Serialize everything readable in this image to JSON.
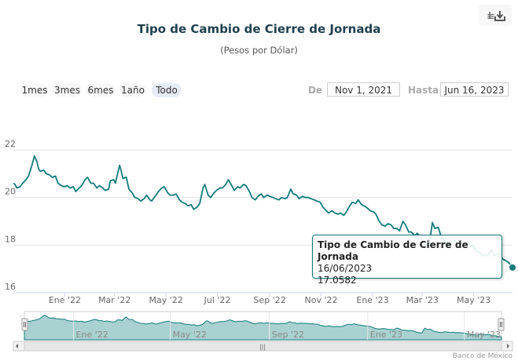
{
  "chart_data": {
    "type": "line",
    "title": "Tipo de Cambio de Cierre de Jornada",
    "subtitle": "(Pesos por Dólar)",
    "series": [
      {
        "name": "Tipo de Cambio de Cierre de Jornada",
        "color": "#137b7b",
        "points": [
          [
            "2021-11-01",
            20.6
          ],
          [
            "2021-11-03",
            20.55
          ],
          [
            "2021-11-05",
            20.4
          ],
          [
            "2021-11-09",
            20.45
          ],
          [
            "2021-11-12",
            20.6
          ],
          [
            "2021-11-16",
            20.75
          ],
          [
            "2021-11-19",
            20.9
          ],
          [
            "2021-11-23",
            21.35
          ],
          [
            "2021-11-26",
            21.75
          ],
          [
            "2021-11-29",
            21.5
          ],
          [
            "2021-12-01",
            21.2
          ],
          [
            "2021-12-03",
            21.1
          ],
          [
            "2021-12-07",
            21.15
          ],
          [
            "2021-12-10",
            21.0
          ],
          [
            "2021-12-14",
            20.95
          ],
          [
            "2021-12-17",
            20.85
          ],
          [
            "2021-12-21",
            20.9
          ],
          [
            "2021-12-24",
            20.6
          ],
          [
            "2021-12-28",
            20.5
          ],
          [
            "2021-12-31",
            20.45
          ],
          [
            "2022-01-04",
            20.5
          ],
          [
            "2022-01-07",
            20.4
          ],
          [
            "2022-01-11",
            20.45
          ],
          [
            "2022-01-14",
            20.25
          ],
          [
            "2022-01-18",
            20.4
          ],
          [
            "2022-01-21",
            20.5
          ],
          [
            "2022-01-25",
            20.75
          ],
          [
            "2022-01-28",
            20.85
          ],
          [
            "2022-02-01",
            20.6
          ],
          [
            "2022-02-04",
            20.6
          ],
          [
            "2022-02-08",
            20.4
          ],
          [
            "2022-02-11",
            20.5
          ],
          [
            "2022-02-15",
            20.4
          ],
          [
            "2022-02-18",
            20.3
          ],
          [
            "2022-02-22",
            20.35
          ],
          [
            "2022-02-24",
            20.7
          ],
          [
            "2022-02-28",
            20.75
          ],
          [
            "2022-03-02",
            20.6
          ],
          [
            "2022-03-04",
            20.9
          ],
          [
            "2022-03-07",
            21.35
          ],
          [
            "2022-03-09",
            21.1
          ],
          [
            "2022-03-11",
            20.8
          ],
          [
            "2022-03-15",
            20.85
          ],
          [
            "2022-03-18",
            20.35
          ],
          [
            "2022-03-22",
            20.2
          ],
          [
            "2022-03-25",
            20.0
          ],
          [
            "2022-03-29",
            19.95
          ],
          [
            "2022-04-01",
            19.85
          ],
          [
            "2022-04-05",
            19.95
          ],
          [
            "2022-04-08",
            20.1
          ],
          [
            "2022-04-12",
            19.9
          ],
          [
            "2022-04-14",
            19.85
          ],
          [
            "2022-04-19",
            20.1
          ],
          [
            "2022-04-22",
            20.25
          ],
          [
            "2022-04-26",
            20.4
          ],
          [
            "2022-04-29",
            20.45
          ],
          [
            "2022-05-03",
            20.2
          ],
          [
            "2022-05-06",
            20.1
          ],
          [
            "2022-05-10",
            20.1
          ],
          [
            "2022-05-13",
            20.15
          ],
          [
            "2022-05-17",
            19.9
          ],
          [
            "2022-05-20",
            19.8
          ],
          [
            "2022-05-24",
            19.75
          ],
          [
            "2022-05-27",
            19.65
          ],
          [
            "2022-05-31",
            19.7
          ],
          [
            "2022-06-03",
            19.5
          ],
          [
            "2022-06-07",
            19.6
          ],
          [
            "2022-06-10",
            19.75
          ],
          [
            "2022-06-14",
            20.4
          ],
          [
            "2022-06-16",
            20.55
          ],
          [
            "2022-06-20",
            20.1
          ],
          [
            "2022-06-23",
            20.0
          ],
          [
            "2022-06-27",
            20.2
          ],
          [
            "2022-06-30",
            20.3
          ],
          [
            "2022-07-04",
            20.4
          ],
          [
            "2022-07-07",
            20.4
          ],
          [
            "2022-07-11",
            20.55
          ],
          [
            "2022-07-14",
            20.75
          ],
          [
            "2022-07-18",
            20.5
          ],
          [
            "2022-07-21",
            20.3
          ],
          [
            "2022-07-25",
            20.45
          ],
          [
            "2022-07-28",
            20.4
          ],
          [
            "2022-08-01",
            20.55
          ],
          [
            "2022-08-04",
            20.5
          ],
          [
            "2022-08-08",
            20.25
          ],
          [
            "2022-08-11",
            20.0
          ],
          [
            "2022-08-15",
            19.9
          ],
          [
            "2022-08-18",
            20.05
          ],
          [
            "2022-08-22",
            20.15
          ],
          [
            "2022-08-25",
            20.0
          ],
          [
            "2022-08-29",
            20.1
          ],
          [
            "2022-09-01",
            20.05
          ],
          [
            "2022-09-05",
            20.0
          ],
          [
            "2022-09-08",
            19.95
          ],
          [
            "2022-09-12",
            19.9
          ],
          [
            "2022-09-15",
            20.0
          ],
          [
            "2022-09-19",
            19.95
          ],
          [
            "2022-09-22",
            20.0
          ],
          [
            "2022-09-26",
            20.35
          ],
          [
            "2022-09-29",
            20.15
          ],
          [
            "2022-10-03",
            20.1
          ],
          [
            "2022-10-06",
            19.95
          ],
          [
            "2022-10-10",
            20.05
          ],
          [
            "2022-10-13",
            20.0
          ],
          [
            "2022-10-17",
            20.0
          ],
          [
            "2022-10-20",
            19.95
          ],
          [
            "2022-10-24",
            19.9
          ],
          [
            "2022-10-27",
            19.85
          ],
          [
            "2022-10-31",
            19.8
          ],
          [
            "2022-11-03",
            19.6
          ],
          [
            "2022-11-07",
            19.45
          ],
          [
            "2022-11-10",
            19.35
          ],
          [
            "2022-11-14",
            19.45
          ],
          [
            "2022-11-17",
            19.35
          ],
          [
            "2022-11-21",
            19.3
          ],
          [
            "2022-11-24",
            19.35
          ],
          [
            "2022-11-28",
            19.25
          ],
          [
            "2022-12-01",
            19.4
          ],
          [
            "2022-12-05",
            19.65
          ],
          [
            "2022-12-08",
            19.8
          ],
          [
            "2022-12-12",
            19.75
          ],
          [
            "2022-12-15",
            19.9
          ],
          [
            "2022-12-19",
            19.7
          ],
          [
            "2022-12-22",
            19.65
          ],
          [
            "2022-12-26",
            19.55
          ],
          [
            "2022-12-29",
            19.45
          ],
          [
            "2023-01-02",
            19.4
          ],
          [
            "2023-01-05",
            19.3
          ],
          [
            "2023-01-09",
            19.0
          ],
          [
            "2023-01-12",
            18.85
          ],
          [
            "2023-01-16",
            18.8
          ],
          [
            "2023-01-19",
            18.9
          ],
          [
            "2023-01-23",
            18.85
          ],
          [
            "2023-01-26",
            18.7
          ],
          [
            "2023-01-30",
            18.7
          ],
          [
            "2023-02-02",
            18.6
          ],
          [
            "2023-02-06",
            19.0
          ],
          [
            "2023-02-09",
            18.85
          ],
          [
            "2023-02-13",
            18.55
          ],
          [
            "2023-02-16",
            18.55
          ],
          [
            "2023-02-20",
            18.4
          ],
          [
            "2023-02-23",
            18.5
          ],
          [
            "2023-02-27",
            18.35
          ],
          [
            "2023-03-02",
            18.15
          ],
          [
            "2023-03-06",
            18.0
          ],
          [
            "2023-03-09",
            17.95
          ],
          [
            "2023-03-13",
            18.95
          ],
          [
            "2023-03-16",
            18.7
          ],
          [
            "2023-03-20",
            18.75
          ],
          [
            "2023-03-23",
            18.4
          ],
          [
            "2023-03-27",
            18.2
          ],
          [
            "2023-03-30",
            18.1
          ],
          [
            "2023-04-03",
            18.0
          ],
          [
            "2023-04-06",
            18.2
          ],
          [
            "2023-04-10",
            18.15
          ],
          [
            "2023-04-13",
            18.05
          ],
          [
            "2023-04-17",
            18.1
          ],
          [
            "2023-04-20",
            18.0
          ],
          [
            "2023-04-24",
            18.05
          ],
          [
            "2023-04-27",
            18.0
          ],
          [
            "2023-05-01",
            17.95
          ],
          [
            "2023-05-04",
            17.75
          ],
          [
            "2023-05-08",
            17.7
          ],
          [
            "2023-05-11",
            17.55
          ],
          [
            "2023-05-15",
            17.6
          ],
          [
            "2023-05-18",
            17.55
          ],
          [
            "2023-05-22",
            17.8
          ],
          [
            "2023-05-25",
            17.55
          ],
          [
            "2023-05-29",
            17.65
          ],
          [
            "2023-06-01",
            17.6
          ],
          [
            "2023-06-05",
            17.4
          ],
          [
            "2023-06-08",
            17.35
          ],
          [
            "2023-06-12",
            17.25
          ],
          [
            "2023-06-14",
            17.15
          ],
          [
            "2023-06-16",
            17.0582
          ]
        ]
      }
    ],
    "x_type": "datetime",
    "x_range": [
      "2021-11-01",
      "2023-06-16"
    ],
    "x_ticks": [
      {
        "date": "2022-01-01",
        "label": "Ene '22"
      },
      {
        "date": "2022-03-01",
        "label": "Mar '22"
      },
      {
        "date": "2022-05-01",
        "label": "May '22"
      },
      {
        "date": "2022-07-01",
        "label": "Jul '22"
      },
      {
        "date": "2022-09-01",
        "label": "Sep '22"
      },
      {
        "date": "2022-11-01",
        "label": "Nov '22"
      },
      {
        "date": "2023-01-01",
        "label": "Ene '23"
      },
      {
        "date": "2023-03-01",
        "label": "Mar '23"
      },
      {
        "date": "2023-05-01",
        "label": "May '23"
      }
    ],
    "navigator_ticks": [
      {
        "date": "2022-01-01",
        "label": "Ene '22"
      },
      {
        "date": "2022-05-01",
        "label": "May '22"
      },
      {
        "date": "2022-09-01",
        "label": "Sep '22"
      },
      {
        "date": "2023-01-01",
        "label": "Ene '23"
      },
      {
        "date": "2023-05-01",
        "label": "May '23"
      }
    ],
    "y_ticks": [
      16,
      18,
      20,
      22
    ],
    "ylim": [
      16,
      23
    ],
    "grid": true,
    "tooltip": {
      "series": "Tipo de Cambio de Cierre de Jornada",
      "date": "16/06/2023",
      "value": "17.0582"
    }
  },
  "toolbar": {
    "range_buttons": [
      "1mes",
      "3mes",
      "6mes",
      "1año",
      "Todo"
    ],
    "active_button": "Todo",
    "from_label": "De",
    "from_value": "Nov 1, 2021",
    "to_label": "Hasta",
    "to_value": "Jun 16, 2023",
    "export_icon": "download-icon"
  },
  "navigator": {
    "scrollbar_grip": "|||"
  },
  "credits": "Banco de México",
  "colors": {
    "line": "#137b7b",
    "navigator_fill": "#8ec1c1",
    "title": "#1f3e4e"
  }
}
